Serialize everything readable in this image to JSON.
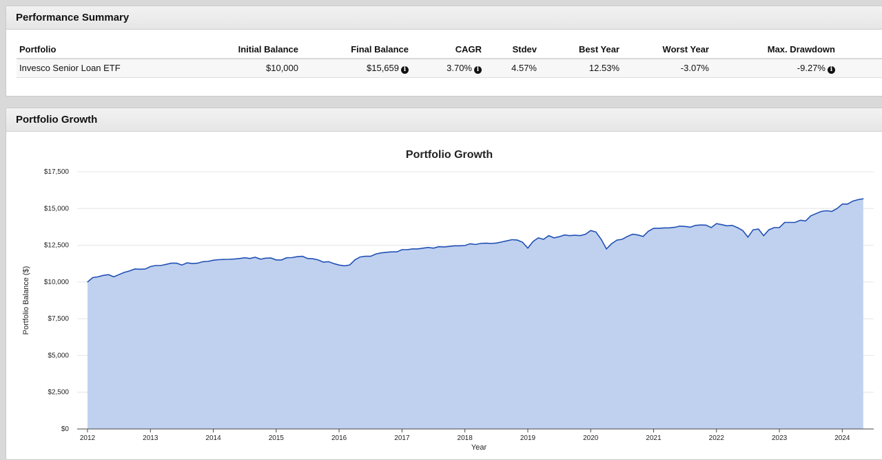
{
  "summary": {
    "title": "Performance Summary",
    "columns": [
      "Portfolio",
      "Initial Balance",
      "Final Balance",
      "CAGR",
      "Stdev",
      "Best Year",
      "Worst Year",
      "Max. Drawdown"
    ],
    "row": {
      "portfolio": "Invesco Senior Loan ETF",
      "initial_balance": "$10,000",
      "final_balance": "$15,659",
      "cagr": "3.70%",
      "stdev": "4.57%",
      "best_year": "12.53%",
      "worst_year": "-3.07%",
      "max_drawdown": "-9.27%"
    },
    "info_icon": "info-circle-icon"
  },
  "growth": {
    "title": "Portfolio Growth"
  },
  "colors": {
    "line": "#2050b4",
    "fill": "#c0d1ef",
    "grid": "#e4e4e4"
  },
  "chart_data": {
    "type": "area",
    "title": "Portfolio Growth",
    "xlabel": "Year",
    "ylabel": "Portfolio Balance ($)",
    "ylim": [
      0,
      17500
    ],
    "xlim": [
      2012.0,
      2024.333
    ],
    "y_ticks": [
      0,
      2500,
      5000,
      7500,
      10000,
      12500,
      15000,
      17500
    ],
    "y_tick_labels": [
      "$0",
      "$2,500",
      "$5,000",
      "$7,500",
      "$10,000",
      "$12,500",
      "$15,000",
      "$17,500"
    ],
    "x_ticks": [
      2012,
      2013,
      2014,
      2015,
      2016,
      2017,
      2018,
      2019,
      2020,
      2021,
      2022,
      2023,
      2024
    ],
    "x_tick_labels": [
      "2012",
      "2013",
      "2014",
      "2015",
      "2016",
      "2017",
      "2018",
      "2019",
      "2020",
      "2021",
      "2022",
      "2023",
      "2024"
    ],
    "series": [
      {
        "name": "Invesco Senior Loan ETF",
        "x": [
          2012.0,
          2012.083,
          2012.167,
          2012.25,
          2012.333,
          2012.417,
          2012.5,
          2012.583,
          2012.667,
          2012.75,
          2012.833,
          2012.917,
          2013.0,
          2013.083,
          2013.167,
          2013.25,
          2013.333,
          2013.417,
          2013.5,
          2013.583,
          2013.667,
          2013.75,
          2013.833,
          2013.917,
          2014.0,
          2014.083,
          2014.167,
          2014.25,
          2014.333,
          2014.417,
          2014.5,
          2014.583,
          2014.667,
          2014.75,
          2014.833,
          2014.917,
          2015.0,
          2015.083,
          2015.167,
          2015.25,
          2015.333,
          2015.417,
          2015.5,
          2015.583,
          2015.667,
          2015.75,
          2015.833,
          2015.917,
          2016.0,
          2016.083,
          2016.167,
          2016.25,
          2016.333,
          2016.417,
          2016.5,
          2016.583,
          2016.667,
          2016.75,
          2016.833,
          2016.917,
          2017.0,
          2017.083,
          2017.167,
          2017.25,
          2017.333,
          2017.417,
          2017.5,
          2017.583,
          2017.667,
          2017.75,
          2017.833,
          2017.917,
          2018.0,
          2018.083,
          2018.167,
          2018.25,
          2018.333,
          2018.417,
          2018.5,
          2018.583,
          2018.667,
          2018.75,
          2018.833,
          2018.917,
          2019.0,
          2019.083,
          2019.167,
          2019.25,
          2019.333,
          2019.417,
          2019.5,
          2019.583,
          2019.667,
          2019.75,
          2019.833,
          2019.917,
          2020.0,
          2020.083,
          2020.167,
          2020.25,
          2020.333,
          2020.417,
          2020.5,
          2020.583,
          2020.667,
          2020.75,
          2020.833,
          2020.917,
          2021.0,
          2021.083,
          2021.167,
          2021.25,
          2021.333,
          2021.417,
          2021.5,
          2021.583,
          2021.667,
          2021.75,
          2021.833,
          2021.917,
          2022.0,
          2022.083,
          2022.167,
          2022.25,
          2022.333,
          2022.417,
          2022.5,
          2022.583,
          2022.667,
          2022.75,
          2022.833,
          2022.917,
          2023.0,
          2023.083,
          2023.167,
          2023.25,
          2023.333,
          2023.417,
          2023.5,
          2023.583,
          2023.667,
          2023.75,
          2023.833,
          2023.917,
          2024.0,
          2024.083,
          2024.167,
          2024.25,
          2024.333
        ],
        "values": [
          10000,
          10300,
          10350,
          10450,
          10500,
          10350,
          10500,
          10650,
          10750,
          10880,
          10870,
          10880,
          11050,
          11120,
          11120,
          11200,
          11280,
          11280,
          11150,
          11300,
          11250,
          11280,
          11380,
          11400,
          11480,
          11520,
          11530,
          11540,
          11560,
          11600,
          11650,
          11600,
          11680,
          11550,
          11620,
          11630,
          11500,
          11500,
          11650,
          11660,
          11720,
          11750,
          11600,
          11580,
          11500,
          11350,
          11380,
          11250,
          11150,
          11100,
          11150,
          11500,
          11700,
          11750,
          11750,
          11900,
          11980,
          12020,
          12050,
          12050,
          12200,
          12200,
          12250,
          12250,
          12300,
          12350,
          12300,
          12400,
          12380,
          12420,
          12460,
          12460,
          12480,
          12600,
          12550,
          12620,
          12640,
          12620,
          12650,
          12720,
          12800,
          12880,
          12850,
          12700,
          12300,
          12750,
          13000,
          12900,
          13150,
          13000,
          13080,
          13200,
          13150,
          13180,
          13150,
          13250,
          13500,
          13400,
          12900,
          12250,
          12600,
          12850,
          12900,
          13100,
          13250,
          13200,
          13100,
          13450,
          13650,
          13650,
          13680,
          13680,
          13720,
          13800,
          13780,
          13730,
          13850,
          13880,
          13870,
          13700,
          13970,
          13900,
          13820,
          13850,
          13700,
          13500,
          13050,
          13550,
          13600,
          13150,
          13550,
          13700,
          13700,
          14050,
          14050,
          14050,
          14200,
          14150,
          14500,
          14650,
          14800,
          14850,
          14800,
          15000,
          15300,
          15300,
          15500,
          15600,
          15659
        ]
      }
    ]
  }
}
